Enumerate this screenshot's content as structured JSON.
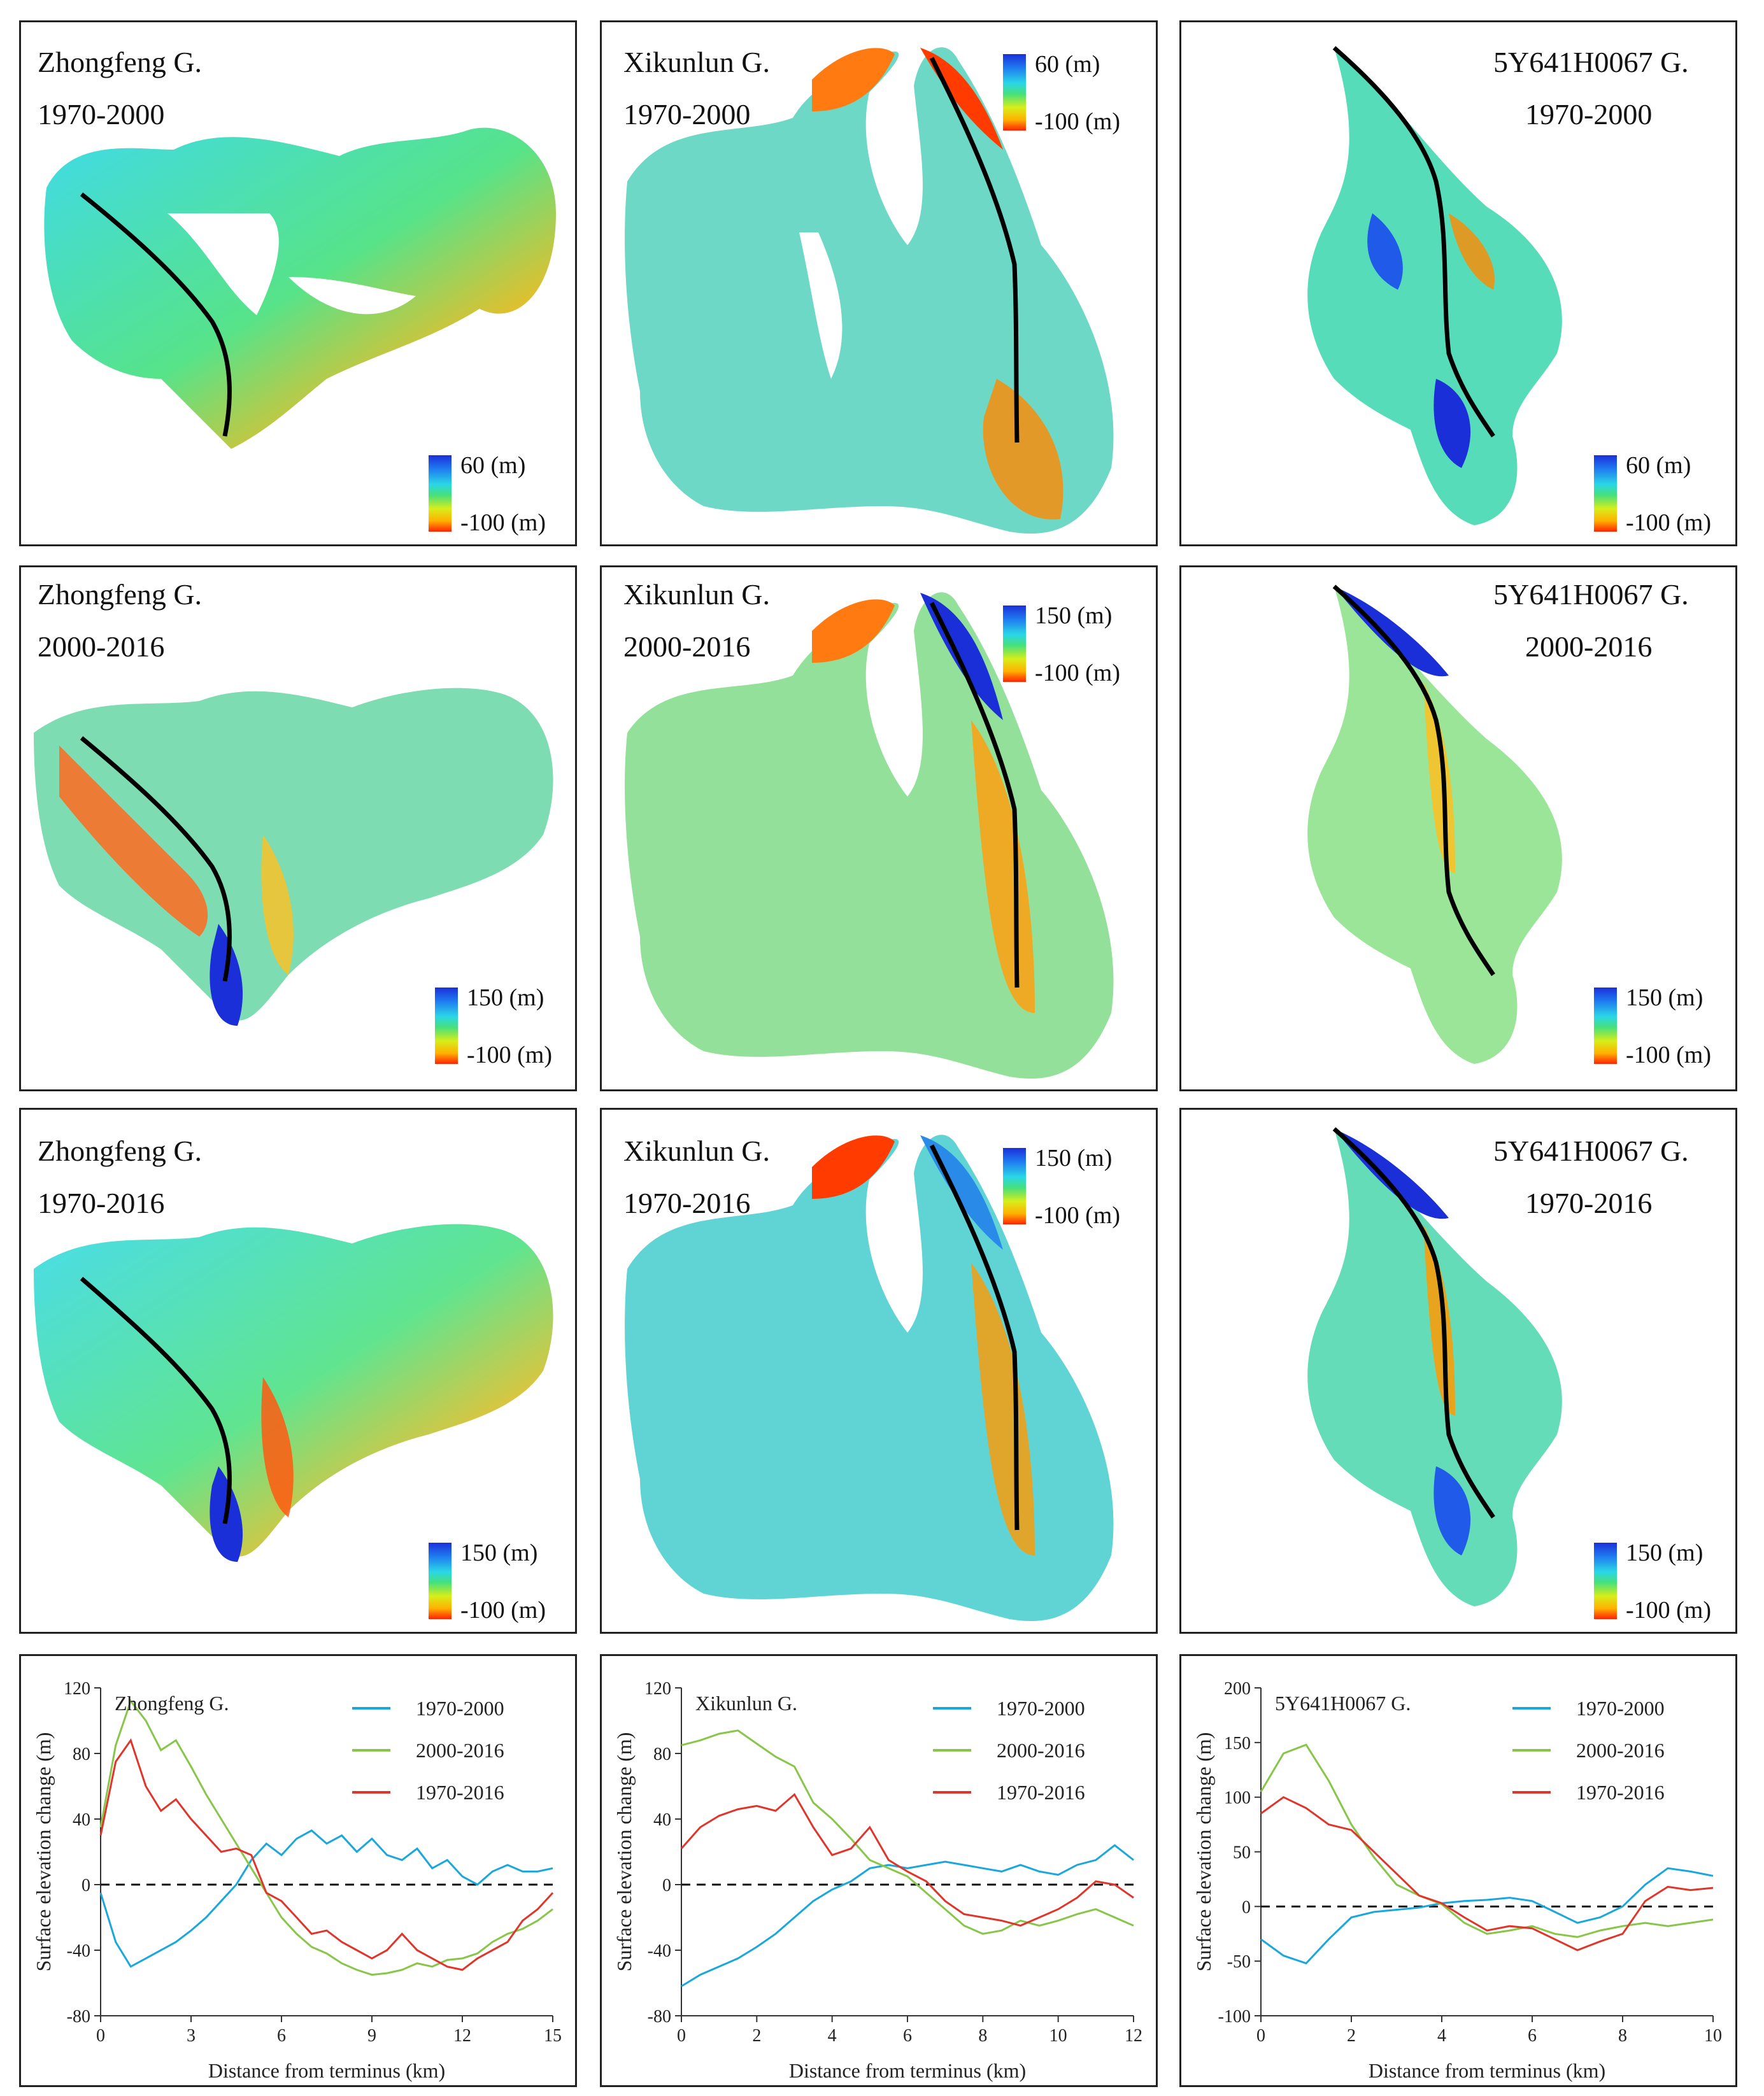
{
  "colors": {
    "high": "#1b2fd8",
    "mid": "#44e07c",
    "low": "#ff2200",
    "line_1970_2000": "#1aa7dc",
    "line_2000_2016": "#88c64a",
    "line_1970_2016": "#e0352b"
  },
  "maps": [
    {
      "glacier": "Zhongfeng G.",
      "period": "1970-2000",
      "max": "60 (m)",
      "min": "-100 (m)"
    },
    {
      "glacier": "Xikunlun G.",
      "period": "1970-2000",
      "max": "60 (m)",
      "min": "-100 (m)"
    },
    {
      "glacier": "5Y641H0067 G.",
      "period": "1970-2000",
      "max": "60 (m)",
      "min": "-100 (m)"
    },
    {
      "glacier": "Zhongfeng G.",
      "period": "2000-2016",
      "max": "150 (m)",
      "min": "-100 (m)"
    },
    {
      "glacier": "Xikunlun G.",
      "period": "2000-2016",
      "max": "150 (m)",
      "min": "-100 (m)"
    },
    {
      "glacier": "5Y641H0067 G.",
      "period": "2000-2016",
      "max": "150 (m)",
      "min": "-100 (m)"
    },
    {
      "glacier": "Zhongfeng G.",
      "period": "1970-2016",
      "max": "150 (m)",
      "min": "-100 (m)"
    },
    {
      "glacier": "Xikunlun G.",
      "period": "1970-2016",
      "max": "150 (m)",
      "min": "-100 (m)"
    },
    {
      "glacier": "5Y641H0067 G.",
      "period": "1970-2016",
      "max": "150 (m)",
      "min": "-100 (m)"
    }
  ],
  "chart_data": [
    {
      "type": "line",
      "title": "Zhongfeng G.",
      "xlabel": "Distance from terminus (km)",
      "ylabel": "Surface elevation change (m)",
      "xlim": [
        0,
        15
      ],
      "ylim": [
        -80,
        120
      ],
      "xticks": [
        0,
        3,
        6,
        9,
        12,
        15
      ],
      "yticks": [
        -80,
        -40,
        0,
        40,
        80,
        120
      ],
      "series": [
        {
          "name": "1970-2000",
          "x": [
            0,
            0.5,
            1,
            1.5,
            2,
            2.5,
            3,
            3.5,
            4,
            4.5,
            5,
            5.5,
            6,
            6.5,
            7,
            7.5,
            8,
            8.5,
            9,
            9.5,
            10,
            10.5,
            11,
            11.5,
            12,
            12.5,
            13,
            13.5,
            14,
            14.5,
            15
          ],
          "values": [
            -5,
            -35,
            -50,
            -45,
            -40,
            -35,
            -28,
            -20,
            -10,
            0,
            15,
            25,
            18,
            28,
            33,
            25,
            30,
            20,
            28,
            18,
            15,
            22,
            10,
            15,
            5,
            0,
            8,
            12,
            8,
            8,
            10
          ]
        },
        {
          "name": "2000-2016",
          "x": [
            0,
            0.5,
            1,
            1.5,
            2,
            2.5,
            3,
            3.5,
            4,
            4.5,
            5,
            5.5,
            6,
            6.5,
            7,
            7.5,
            8,
            8.5,
            9,
            9.5,
            10,
            10.5,
            11,
            11.5,
            12,
            12.5,
            13,
            13.5,
            14,
            14.5,
            15
          ],
          "values": [
            35,
            85,
            112,
            100,
            82,
            88,
            72,
            55,
            40,
            25,
            10,
            -5,
            -20,
            -30,
            -38,
            -42,
            -48,
            -52,
            -55,
            -54,
            -52,
            -48,
            -50,
            -46,
            -45,
            -42,
            -35,
            -30,
            -27,
            -22,
            -15
          ]
        },
        {
          "name": "1970-2016",
          "x": [
            0,
            0.5,
            1,
            1.5,
            2,
            2.5,
            3,
            3.5,
            4,
            4.5,
            5,
            5.5,
            6,
            6.5,
            7,
            7.5,
            8,
            8.5,
            9,
            9.5,
            10,
            10.5,
            11,
            11.5,
            12,
            12.5,
            13,
            13.5,
            14,
            14.5,
            15
          ],
          "values": [
            30,
            75,
            88,
            60,
            45,
            52,
            40,
            30,
            20,
            22,
            18,
            -5,
            -10,
            -20,
            -30,
            -28,
            -35,
            -40,
            -45,
            -40,
            -30,
            -40,
            -45,
            -50,
            -52,
            -45,
            -40,
            -35,
            -22,
            -15,
            -5
          ]
        }
      ]
    },
    {
      "type": "line",
      "title": "Xikunlun G.",
      "xlabel": "Distance from terminus (km)",
      "ylabel": "Surface elevation change (m)",
      "xlim": [
        0,
        12
      ],
      "ylim": [
        -80,
        120
      ],
      "xticks": [
        0,
        2,
        4,
        6,
        8,
        10,
        12
      ],
      "yticks": [
        -80,
        -40,
        0,
        40,
        80,
        120
      ],
      "series": [
        {
          "name": "1970-2000",
          "x": [
            0,
            0.5,
            1,
            1.5,
            2,
            2.5,
            3,
            3.5,
            4,
            4.5,
            5,
            5.5,
            6,
            6.5,
            7,
            7.5,
            8,
            8.5,
            9,
            9.5,
            10,
            10.5,
            11,
            11.5,
            12
          ],
          "values": [
            -62,
            -55,
            -50,
            -45,
            -38,
            -30,
            -20,
            -10,
            -3,
            2,
            10,
            12,
            10,
            12,
            14,
            12,
            10,
            8,
            12,
            8,
            6,
            12,
            15,
            24,
            15
          ]
        },
        {
          "name": "2000-2016",
          "x": [
            0,
            0.5,
            1,
            1.5,
            2,
            2.5,
            3,
            3.5,
            4,
            4.5,
            5,
            5.5,
            6,
            6.5,
            7,
            7.5,
            8,
            8.5,
            9,
            9.5,
            10,
            10.5,
            11,
            11.5,
            12
          ],
          "values": [
            85,
            88,
            92,
            94,
            86,
            78,
            72,
            50,
            40,
            28,
            15,
            10,
            5,
            -5,
            -15,
            -25,
            -30,
            -28,
            -22,
            -25,
            -22,
            -18,
            -15,
            -20,
            -25
          ]
        },
        {
          "name": "1970-2016",
          "x": [
            0,
            0.5,
            1,
            1.5,
            2,
            2.5,
            3,
            3.5,
            4,
            4.5,
            5,
            5.5,
            6,
            6.5,
            7,
            7.5,
            8,
            8.5,
            9,
            9.5,
            10,
            10.5,
            11,
            11.5,
            12
          ],
          "values": [
            22,
            35,
            42,
            46,
            48,
            45,
            55,
            35,
            18,
            22,
            35,
            15,
            8,
            2,
            -10,
            -18,
            -20,
            -22,
            -25,
            -20,
            -15,
            -8,
            2,
            0,
            -8
          ]
        }
      ]
    },
    {
      "type": "line",
      "title": "5Y641H0067 G.",
      "xlabel": "Distance from terminus (km)",
      "ylabel": "Surface elevation change (m)",
      "xlim": [
        0,
        10
      ],
      "ylim": [
        -100,
        200
      ],
      "xticks": [
        0,
        2,
        4,
        6,
        8,
        10
      ],
      "yticks": [
        -100,
        -50,
        0,
        50,
        100,
        150,
        200
      ],
      "series": [
        {
          "name": "1970-2000",
          "x": [
            0,
            0.5,
            1,
            1.5,
            2,
            2.5,
            3,
            3.5,
            4,
            4.5,
            5,
            5.5,
            6,
            6.5,
            7,
            7.5,
            8,
            8.5,
            9,
            9.5,
            10
          ],
          "values": [
            -30,
            -45,
            -52,
            -30,
            -10,
            -5,
            -3,
            -1,
            3,
            5,
            6,
            8,
            5,
            -5,
            -15,
            -10,
            0,
            20,
            35,
            32,
            28
          ]
        },
        {
          "name": "2000-2016",
          "x": [
            0,
            0.5,
            1,
            1.5,
            2,
            2.5,
            3,
            3.5,
            4,
            4.5,
            5,
            5.5,
            6,
            6.5,
            7,
            7.5,
            8,
            8.5,
            9,
            9.5,
            10
          ],
          "values": [
            105,
            140,
            148,
            115,
            75,
            45,
            20,
            10,
            2,
            -15,
            -25,
            -22,
            -18,
            -25,
            -28,
            -22,
            -18,
            -15,
            -18,
            -15,
            -12
          ]
        },
        {
          "name": "1970-2016",
          "x": [
            0,
            0.5,
            1,
            1.5,
            2,
            2.5,
            3,
            3.5,
            4,
            4.5,
            5,
            5.5,
            6,
            6.5,
            7,
            7.5,
            8,
            8.5,
            9,
            9.5,
            10
          ],
          "values": [
            85,
            100,
            90,
            75,
            70,
            50,
            30,
            10,
            3,
            -10,
            -22,
            -18,
            -20,
            -30,
            -40,
            -32,
            -25,
            5,
            18,
            15,
            17
          ]
        }
      ]
    }
  ]
}
